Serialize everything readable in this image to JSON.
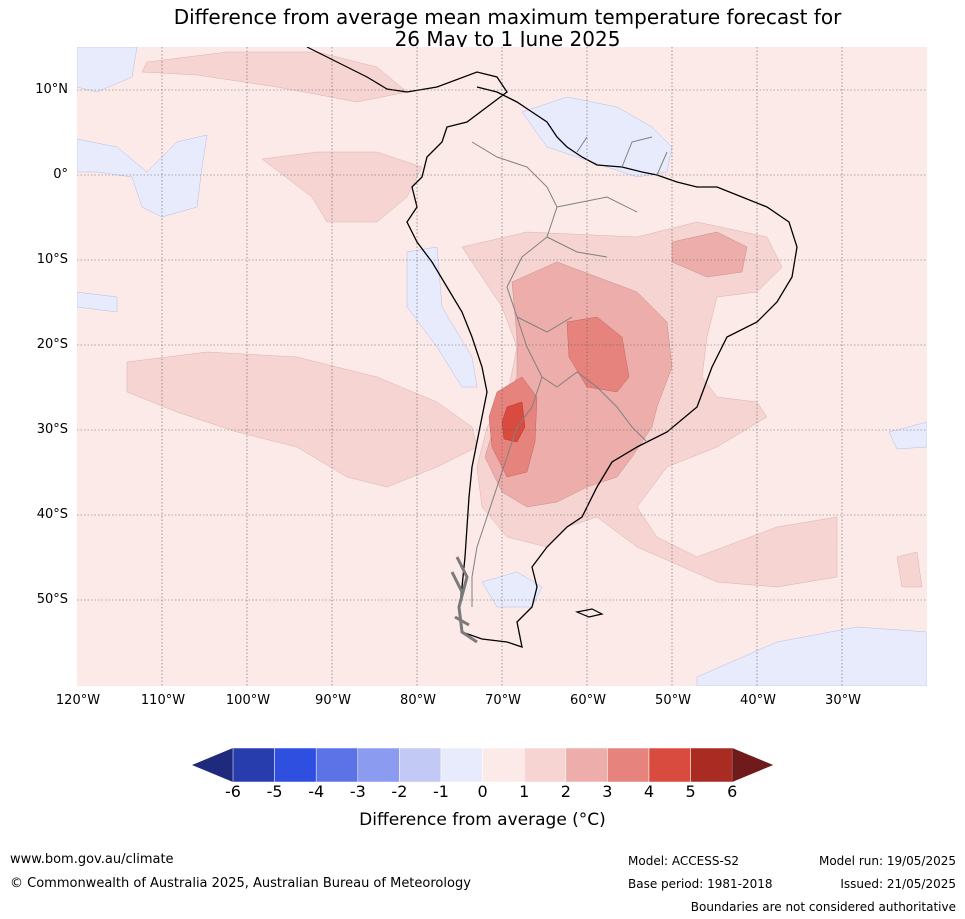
{
  "title": {
    "line1": "Difference from average mean maximum temperature forecast for",
    "line2": "26 May to 1 June 2025"
  },
  "map": {
    "region": "South America",
    "lat_labels": [
      "10°N",
      "0°",
      "10°S",
      "20°S",
      "30°S",
      "40°S",
      "50°S"
    ],
    "lon_labels": [
      "120°W",
      "110°W",
      "100°W",
      "90°W",
      "80°W",
      "70°W",
      "60°W",
      "50°W",
      "40°W",
      "30°W"
    ],
    "gridlines": "dotted"
  },
  "legend": {
    "ticks": [
      "-6",
      "-5",
      "-4",
      "-3",
      "-2",
      "-1",
      "0",
      "1",
      "2",
      "3",
      "4",
      "5",
      "6"
    ],
    "colors": [
      "#1f2a7c",
      "#283dad",
      "#2e4fe0",
      "#5b73e6",
      "#8a9bf0",
      "#c3c9f5",
      "#e8ebfb",
      "#fceae9",
      "#f5d4d2",
      "#edaeab",
      "#e5837c",
      "#d94a3f",
      "#a92b22",
      "#701b1b"
    ],
    "label": "Difference from average (°C)",
    "extend": "both"
  },
  "footer": {
    "url": "www.bom.gov.au/climate",
    "copyright": "© Commonwealth of Australia 2025, Australian Bureau of Meteorology",
    "model": "Model: ACCESS-S2",
    "base_period": "Base period: 1981-2018",
    "model_run": "Model run: 19/05/2025",
    "issued": "Issued: 21/05/2025",
    "disclaimer": "Boundaries are not considered authoritative"
  }
}
